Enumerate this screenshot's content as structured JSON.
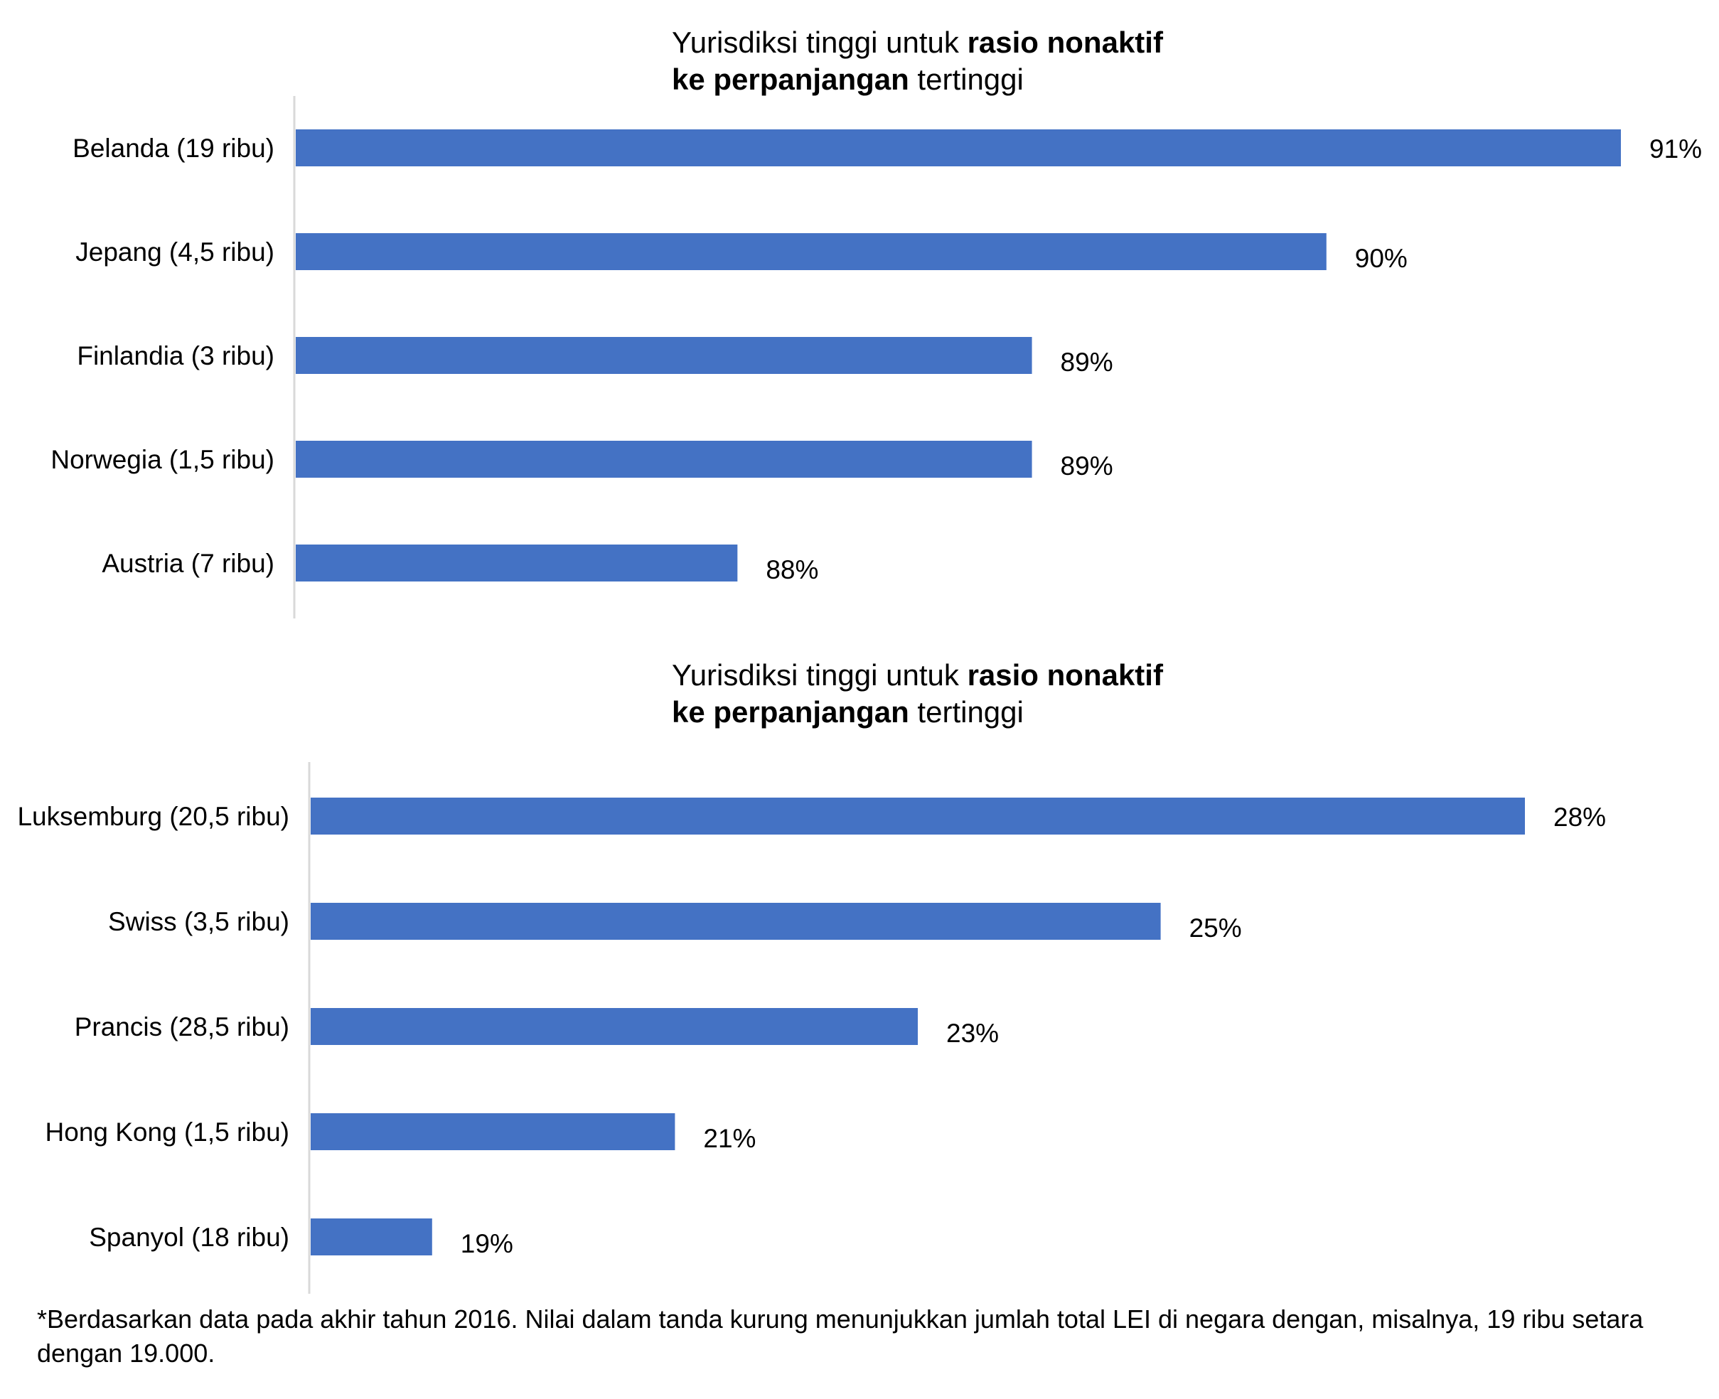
{
  "chart_data": [
    {
      "type": "bar",
      "orientation": "horizontal",
      "title": {
        "line1_normal": "Yurisdiksi tinggi untuk ",
        "line1_bold": "rasio nonaktif",
        "line2_bold": "ke perpanjangan",
        "line2_normal": " tertinggi"
      },
      "categories": [
        "Belanda (19 ribu)",
        "Jepang (4,5 ribu)",
        "Finlandia (3 ribu)",
        "Norwegia (1,5 ribu)",
        "Austria (7 ribu)"
      ],
      "values": [
        91,
        90,
        89,
        89,
        88
      ],
      "value_labels": [
        "91%",
        "90%",
        "89%",
        "89%",
        "88%"
      ],
      "xlim": [
        86.5,
        91
      ],
      "bar_color": "#4472C4",
      "axis_color": "#D9D9D9",
      "grid": false,
      "legend": "none"
    },
    {
      "type": "bar",
      "orientation": "horizontal",
      "title": {
        "line1_normal": "Yurisdiksi tinggi untuk ",
        "line1_bold": "rasio nonaktif",
        "line2_bold": "ke perpanjangan",
        "line2_normal": " tertinggi"
      },
      "categories": [
        "Luksemburg (20,5 ribu)",
        "Swiss (3,5 ribu)",
        "Prancis (28,5 ribu)",
        "Hong Kong (1,5 ribu)",
        "Spanyol (18 ribu)"
      ],
      "values": [
        28,
        25,
        23,
        21,
        19
      ],
      "value_labels": [
        "28%",
        "25%",
        "23%",
        "21%",
        "19%"
      ],
      "xlim": [
        18,
        28
      ],
      "bar_color": "#4472C4",
      "axis_color": "#D9D9D9",
      "grid": false,
      "legend": "none"
    }
  ],
  "footnote": "*Berdasarkan data pada akhir tahun 2016. Nilai dalam tanda kurung menunjukkan jumlah total LEI di negara dengan, misalnya, 19 ribu setara dengan 19.000."
}
